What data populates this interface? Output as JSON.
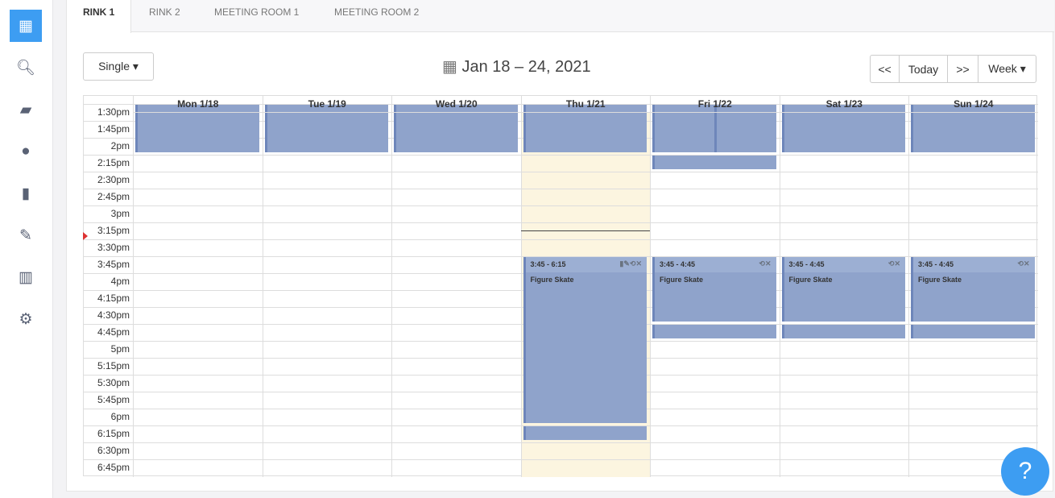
{
  "sidebar": {
    "items": [
      {
        "icon": "calendar-icon",
        "glyph": "▦",
        "active": true
      },
      {
        "icon": "search-icon",
        "glyph": "🔍︎"
      },
      {
        "icon": "book-icon",
        "glyph": "▰"
      },
      {
        "icon": "user-icon",
        "glyph": "●"
      },
      {
        "icon": "file-icon",
        "glyph": "▮"
      },
      {
        "icon": "edit-icon",
        "glyph": "✎"
      },
      {
        "icon": "chart-icon",
        "glyph": "▥"
      },
      {
        "icon": "gear-icon",
        "glyph": "⚙"
      }
    ]
  },
  "tabs": [
    "RINK 1",
    "RINK 2",
    "MEETING ROOM 1",
    "MEETING ROOM 2"
  ],
  "toolbar": {
    "view_mode": "Single ▾",
    "title": "Jan 18 – 24, 2021",
    "prev": "<<",
    "today": "Today",
    "next": ">>",
    "range": "Week ▾"
  },
  "days": [
    "Mon 1/18",
    "Tue 1/19",
    "Wed 1/20",
    "Thu 1/21",
    "Fri 1/22",
    "Sat 1/23",
    "Sun 1/24"
  ],
  "today_index": 3,
  "times": [
    "1:30pm",
    "1:45pm",
    "2pm",
    "2:15pm",
    "2:30pm",
    "2:45pm",
    "3pm",
    "3:15pm",
    "3:30pm",
    "3:45pm",
    "4pm",
    "4:15pm",
    "4:30pm",
    "4:45pm",
    "5pm",
    "5:15pm",
    "5:30pm",
    "5:45pm",
    "6pm",
    "6:15pm",
    "6:30pm",
    "6:45pm"
  ],
  "now_time": "3:22",
  "events": [
    {
      "day": 0,
      "start": "1:30",
      "end": "2:15"
    },
    {
      "day": 1,
      "start": "1:30",
      "end": "2:15"
    },
    {
      "day": 2,
      "start": "1:30",
      "end": "2:15"
    },
    {
      "day": 3,
      "start": "1:30",
      "end": "2:15"
    },
    {
      "day": 4,
      "start": "1:30",
      "end": "2:15",
      "half": 0
    },
    {
      "day": 4,
      "start": "1:30",
      "end": "2:15",
      "half": 1
    },
    {
      "day": 4,
      "start": "2:15",
      "end": "2:30"
    },
    {
      "day": 5,
      "start": "1:30",
      "end": "2:15"
    },
    {
      "day": 6,
      "start": "1:30",
      "end": "2:15"
    },
    {
      "day": 3,
      "start": "3:45",
      "end": "6:15",
      "time": "3:45 - 6:15",
      "title": "Figure Skate",
      "icons": "▮✎⟲✕"
    },
    {
      "day": 3,
      "start": "6:15",
      "end": "6:30"
    },
    {
      "day": 4,
      "start": "3:45",
      "end": "4:45",
      "time": "3:45 - 4:45",
      "title": "Figure Skate",
      "icons": "⟲✕"
    },
    {
      "day": 4,
      "start": "4:45",
      "end": "5:00"
    },
    {
      "day": 5,
      "start": "3:45",
      "end": "4:45",
      "time": "3:45 - 4:45",
      "title": "Figure Skate",
      "icons": "⟲✕"
    },
    {
      "day": 5,
      "start": "4:45",
      "end": "5:00"
    },
    {
      "day": 6,
      "start": "3:45",
      "end": "4:45",
      "time": "3:45 - 4:45",
      "title": "Figure Skate",
      "icons": "⟲✕"
    },
    {
      "day": 6,
      "start": "4:45",
      "end": "5:00"
    }
  ],
  "help": "?",
  "colors": {
    "accent": "#3d9df2",
    "event": "#8fa3cb",
    "today": "#fcf5e0"
  }
}
